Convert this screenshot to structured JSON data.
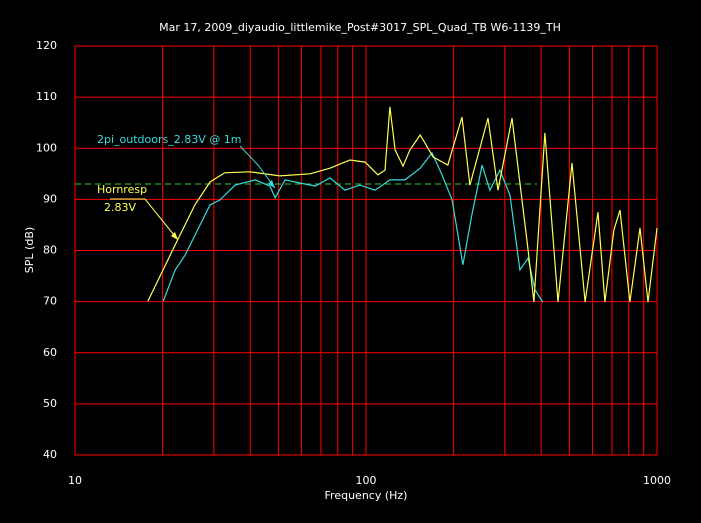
{
  "chart_data": {
    "type": "line",
    "title": "Mar 17, 2009_diyaudio_littlemike_Post#3017_SPL_Quad_TB W6-1139_TH",
    "x_label": "Frequency (Hz)",
    "y_label": "SPL (dB)",
    "x_log": true,
    "grid": true,
    "grid_color": "#ff0000",
    "xlim": [
      10,
      1000
    ],
    "xticks": [
      10,
      100,
      1000
    ],
    "x_minor_ticks": [
      20,
      30,
      40,
      50,
      60,
      70,
      80,
      90,
      200,
      300,
      400,
      500,
      600,
      700,
      800,
      900
    ],
    "ylim": [
      40,
      120
    ],
    "yticks": [
      40,
      50,
      60,
      70,
      80,
      90,
      100,
      110,
      120
    ],
    "reference_line": {
      "value": 93,
      "color": "#33cc33"
    },
    "annotations": [
      "2.83V"
    ],
    "series": [
      {
        "name": "2pi_outdoors_2.83V @ 1m",
        "color": "#33dddd",
        "x": [
          20.1,
          22.1,
          23.9,
          26.9,
          29.1,
          31.5,
          35.5,
          41.6,
          46.8,
          48.7,
          52.7,
          59.3,
          66.9,
          75.2,
          84.7,
          95.3,
          107.4,
          120.8,
          136.2,
          153.5,
          168.6,
          182.4,
          197.6,
          215.3,
          231.2,
          250.5,
          266.6,
          288.4,
          312.5,
          338,
          360.6,
          381,
          405
        ],
        "values": [
          70.1,
          76.2,
          79.1,
          85,
          88.9,
          89.9,
          92.8,
          93.8,
          92.6,
          90.3,
          93.8,
          93.2,
          92.6,
          94.2,
          91.8,
          92.8,
          91.8,
          93.8,
          93.8,
          96.1,
          99.1,
          94.8,
          89.9,
          77.2,
          87,
          96.7,
          91.8,
          95.7,
          90.8,
          76.2,
          78.5,
          72.3,
          69.9
        ]
      },
      {
        "name": "Hornresp",
        "color": "#ffff55",
        "x": [
          17.8,
          22.1,
          25.8,
          29.1,
          32.7,
          39.9,
          50.6,
          64.2,
          75.2,
          88.1,
          99.3,
          109.9,
          116.2,
          120.8,
          125.9,
          134,
          141.6,
          153.5,
          170,
          191,
          213.8,
          227.6,
          262.5,
          284.2,
          317.5,
          360.6,
          377.6,
          412,
          457,
          510.5,
          566,
          627,
          662,
          711,
          746,
          807,
          874,
          931,
          1000
        ],
        "values": [
          70.1,
          81.1,
          88.9,
          93.4,
          95.2,
          95.4,
          94.6,
          95,
          96.1,
          97.7,
          97.3,
          94.8,
          95.7,
          108.1,
          99.7,
          96.5,
          99.7,
          102.6,
          98.3,
          96.7,
          106.1,
          92.8,
          105.9,
          91.8,
          105.9,
          80.1,
          69.9,
          103,
          69.9,
          97.1,
          69.9,
          87.5,
          69.9,
          84,
          87.9,
          69.9,
          84.4,
          69.9,
          84.4
        ]
      }
    ]
  }
}
